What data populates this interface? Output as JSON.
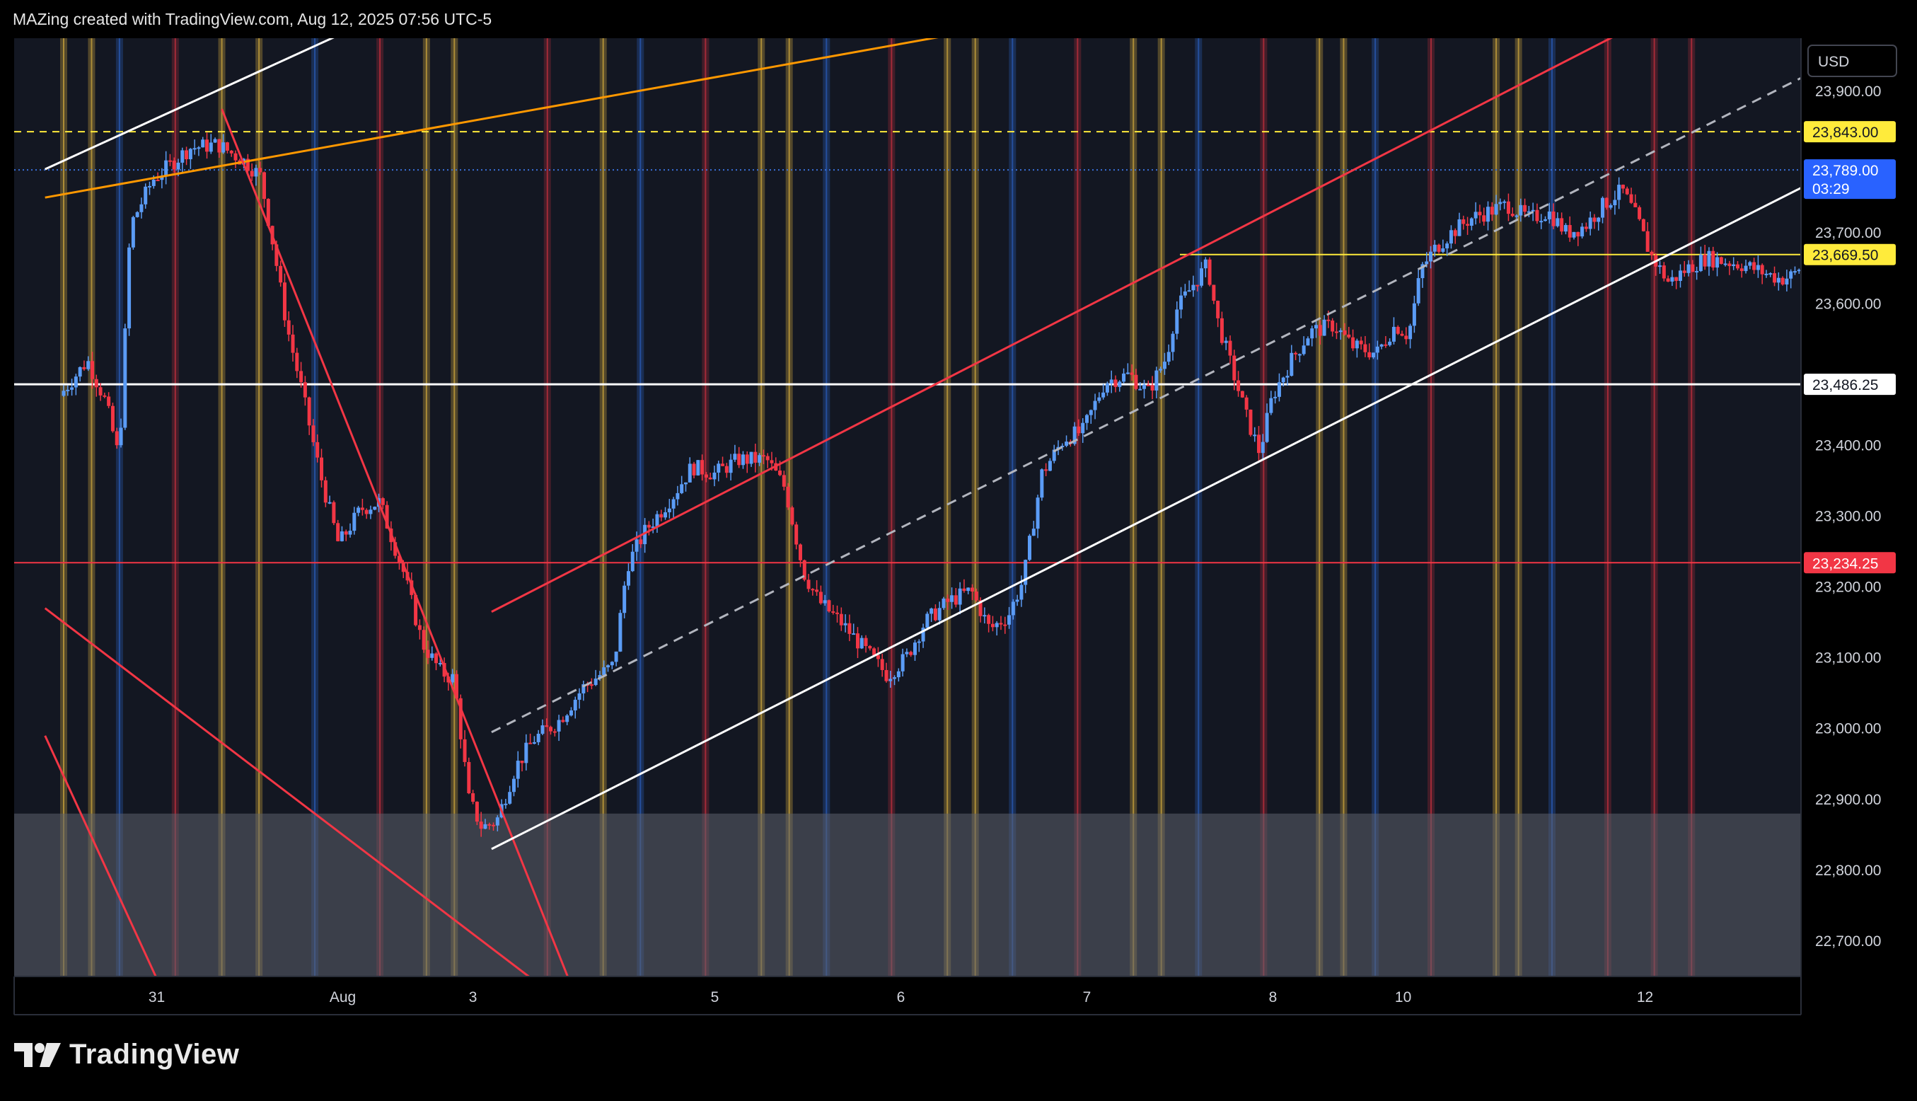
{
  "header": {
    "attribution": "MAZing created with TradingView.com, Aug 12, 2025 07:56 UTC-5"
  },
  "footer": {
    "brand": "TradingView"
  },
  "colors": {
    "background": "#000000",
    "plot_background": "#131722",
    "up_candle": "#5b9cf6",
    "down_candle": "#f23645",
    "support_line": "#ffffff",
    "channel_red": "#f23645",
    "trend_orange": "#ff9800",
    "level_yellow": "#ffeb3b",
    "level_red": "#f23645",
    "zone_grey": "#5d606b"
  },
  "chart_data": {
    "type": "candlestick",
    "currency_label": "USD",
    "ylim": [
      22650,
      23975
    ],
    "y_ticks": [
      {
        "value": 22700,
        "label": "22,700.00"
      },
      {
        "value": 22800,
        "label": "22,800.00"
      },
      {
        "value": 22900,
        "label": "22,900.00"
      },
      {
        "value": 23000,
        "label": "23,000.00"
      },
      {
        "value": 23100,
        "label": "23,100.00"
      },
      {
        "value": 23200,
        "label": "23,200.00"
      },
      {
        "value": 23300,
        "label": "23,300.00"
      },
      {
        "value": 23400,
        "label": "23,400.00"
      },
      {
        "value": 23600,
        "label": "23,600.00"
      },
      {
        "value": 23700,
        "label": "23,700.00"
      },
      {
        "value": 23900,
        "label": "23,900.00"
      }
    ],
    "x_ticks": [
      {
        "label": "31",
        "session": 0.5
      },
      {
        "label": "Aug",
        "session": 1.5
      },
      {
        "label": "3",
        "session": 2.2
      },
      {
        "label": "5",
        "session": 3.5
      },
      {
        "label": "6",
        "session": 4.5
      },
      {
        "label": "7",
        "session": 5.5
      },
      {
        "label": "8",
        "session": 6.5
      },
      {
        "label": "10",
        "session": 7.2
      },
      {
        "label": "12",
        "session": 8.5
      }
    ],
    "price_tags": [
      {
        "label": "23,843.00",
        "value": 23843,
        "kind": "yellow"
      },
      {
        "label": "23,789.00",
        "sub": "03:29",
        "value": 23789,
        "kind": "current"
      },
      {
        "label": "23,669.50",
        "value": 23669.5,
        "kind": "yellow"
      },
      {
        "label": "23,486.25",
        "value": 23486.25,
        "kind": "white"
      },
      {
        "label": "23,234.25",
        "value": 23234.25,
        "kind": "red"
      }
    ],
    "horizontal_levels": [
      {
        "value": 23843,
        "style": "dashed",
        "color": "#ffeb3b"
      },
      {
        "value": 23789,
        "style": "dotted",
        "color": "#3a6fd8"
      },
      {
        "value": 23669.5,
        "style": "solid",
        "color": "#ffeb3b",
        "from_session": 6.0
      },
      {
        "value": 23486.25,
        "style": "solid",
        "color": "#ffffff"
      },
      {
        "value": 23234.25,
        "style": "solid",
        "color": "#f23645"
      }
    ],
    "zone": {
      "from": 22650,
      "to": 22880
    },
    "session_bands": [
      {
        "session": 0.0,
        "color": "yellow"
      },
      {
        "session": 0.15,
        "color": "yellow"
      },
      {
        "session": 0.3,
        "color": "blue"
      },
      {
        "session": 0.6,
        "color": "red"
      },
      {
        "session": 0.85,
        "color": "yellow"
      },
      {
        "session": 1.05,
        "color": "yellow"
      },
      {
        "session": 1.35,
        "color": "blue"
      },
      {
        "session": 1.7,
        "color": "red"
      },
      {
        "session": 1.95,
        "color": "yellow"
      },
      {
        "session": 2.1,
        "color": "yellow"
      },
      {
        "session": 2.6,
        "color": "red"
      },
      {
        "session": 2.9,
        "color": "yellow"
      },
      {
        "session": 3.1,
        "color": "blue"
      },
      {
        "session": 3.45,
        "color": "red"
      },
      {
        "session": 3.75,
        "color": "yellow"
      },
      {
        "session": 3.9,
        "color": "yellow"
      },
      {
        "session": 4.1,
        "color": "blue"
      },
      {
        "session": 4.45,
        "color": "red"
      },
      {
        "session": 4.75,
        "color": "yellow"
      },
      {
        "session": 4.9,
        "color": "yellow"
      },
      {
        "session": 5.1,
        "color": "blue"
      },
      {
        "session": 5.45,
        "color": "red"
      },
      {
        "session": 5.75,
        "color": "yellow"
      },
      {
        "session": 5.9,
        "color": "yellow"
      },
      {
        "session": 6.1,
        "color": "blue"
      },
      {
        "session": 6.45,
        "color": "red"
      },
      {
        "session": 6.75,
        "color": "yellow"
      },
      {
        "session": 6.88,
        "color": "yellow"
      },
      {
        "session": 7.05,
        "color": "blue"
      },
      {
        "session": 7.35,
        "color": "red"
      },
      {
        "session": 7.7,
        "color": "yellow"
      },
      {
        "session": 7.82,
        "color": "yellow"
      },
      {
        "session": 8.0,
        "color": "blue"
      },
      {
        "session": 8.3,
        "color": "red"
      },
      {
        "session": 8.55,
        "color": "red"
      },
      {
        "session": 8.75,
        "color": "red"
      }
    ],
    "trendlines": [
      {
        "name": "white-upper",
        "color": "#ffffff",
        "dash": false,
        "p1": [
          -0.1,
          23790
        ],
        "p2": [
          1.9,
          24030
        ]
      },
      {
        "name": "orange",
        "color": "#ff9800",
        "dash": false,
        "p1": [
          -0.1,
          23750
        ],
        "p2": [
          5.2,
          24000
        ]
      },
      {
        "name": "down-red-1",
        "color": "#f23645",
        "dash": false,
        "p1": [
          0.85,
          23875
        ],
        "p2": [
          2.8,
          22590
        ]
      },
      {
        "name": "down-red-2",
        "color": "#f23645",
        "dash": false,
        "p1": [
          -0.1,
          23170
        ],
        "p2": [
          2.8,
          22590
        ]
      },
      {
        "name": "down-red-3",
        "color": "#f23645",
        "dash": false,
        "p1": [
          -0.1,
          22990
        ],
        "p2": [
          0.6,
          22590
        ]
      },
      {
        "name": "channel-upper",
        "color": "#f23645",
        "dash": false,
        "p1": [
          2.3,
          23165
        ],
        "p2": [
          8.5,
          24000
        ]
      },
      {
        "name": "channel-mid",
        "color": "#b2b5be",
        "dash": true,
        "p1": [
          2.3,
          22995
        ],
        "p2": [
          9.5,
          23940
        ]
      },
      {
        "name": "channel-lower",
        "color": "#ffffff",
        "dash": false,
        "p1": [
          2.3,
          22830
        ],
        "p2": [
          9.5,
          23785
        ]
      }
    ],
    "path": [
      [
        0.0,
        23470
      ],
      [
        0.15,
        23520
      ],
      [
        0.25,
        23460
      ],
      [
        0.32,
        23380
      ],
      [
        0.38,
        23710
      ],
      [
        0.5,
        23775
      ],
      [
        0.7,
        23820
      ],
      [
        0.85,
        23825
      ],
      [
        1.0,
        23800
      ],
      [
        1.08,
        23780
      ],
      [
        1.15,
        23680
      ],
      [
        1.22,
        23570
      ],
      [
        1.3,
        23480
      ],
      [
        1.4,
        23360
      ],
      [
        1.5,
        23260
      ],
      [
        1.62,
        23310
      ],
      [
        1.72,
        23320
      ],
      [
        1.85,
        23220
      ],
      [
        1.95,
        23120
      ],
      [
        2.05,
        23080
      ],
      [
        2.12,
        23070
      ],
      [
        2.2,
        22900
      ],
      [
        2.27,
        22860
      ],
      [
        2.35,
        22870
      ],
      [
        2.45,
        22945
      ],
      [
        2.55,
        22985
      ],
      [
        2.68,
        23010
      ],
      [
        2.82,
        23060
      ],
      [
        2.98,
        23090
      ],
      [
        3.05,
        23230
      ],
      [
        3.15,
        23280
      ],
      [
        3.3,
        23330
      ],
      [
        3.4,
        23370
      ],
      [
        3.52,
        23360
      ],
      [
        3.65,
        23380
      ],
      [
        3.8,
        23380
      ],
      [
        3.9,
        23340
      ],
      [
        4.0,
        23220
      ],
      [
        4.08,
        23180
      ],
      [
        4.2,
        23150
      ],
      [
        4.3,
        23120
      ],
      [
        4.45,
        23075
      ],
      [
        4.55,
        23100
      ],
      [
        4.65,
        23150
      ],
      [
        4.78,
        23180
      ],
      [
        4.9,
        23195
      ],
      [
        5.0,
        23140
      ],
      [
        5.1,
        23160
      ],
      [
        5.18,
        23210
      ],
      [
        5.28,
        23360
      ],
      [
        5.4,
        23410
      ],
      [
        5.5,
        23420
      ],
      [
        5.62,
        23490
      ],
      [
        5.75,
        23500
      ],
      [
        5.85,
        23475
      ],
      [
        5.95,
        23525
      ],
      [
        6.0,
        23590
      ],
      [
        6.1,
        23630
      ],
      [
        6.17,
        23655
      ],
      [
        6.22,
        23580
      ],
      [
        6.3,
        23510
      ],
      [
        6.38,
        23440
      ],
      [
        6.45,
        23390
      ],
      [
        6.52,
        23470
      ],
      [
        6.62,
        23520
      ],
      [
        6.72,
        23560
      ],
      [
        6.85,
        23570
      ],
      [
        6.95,
        23540
      ],
      [
        7.08,
        23530
      ],
      [
        7.18,
        23570
      ],
      [
        7.25,
        23555
      ],
      [
        7.32,
        23650
      ],
      [
        7.4,
        23680
      ],
      [
        7.48,
        23700
      ],
      [
        7.58,
        23720
      ],
      [
        7.68,
        23730
      ],
      [
        7.78,
        23740
      ],
      [
        7.9,
        23720
      ],
      [
        8.0,
        23730
      ],
      [
        8.1,
        23700
      ],
      [
        8.2,
        23710
      ],
      [
        8.3,
        23740
      ],
      [
        8.4,
        23760
      ],
      [
        8.48,
        23720
      ],
      [
        8.55,
        23670
      ],
      [
        8.65,
        23630
      ],
      [
        8.75,
        23650
      ],
      [
        8.85,
        23665
      ],
      [
        8.95,
        23660
      ],
      [
        9.05,
        23655
      ],
      [
        9.15,
        23645
      ],
      [
        9.25,
        23635
      ],
      [
        9.32,
        23640
      ],
      [
        9.38,
        23660
      ],
      [
        9.43,
        23789
      ]
    ]
  }
}
